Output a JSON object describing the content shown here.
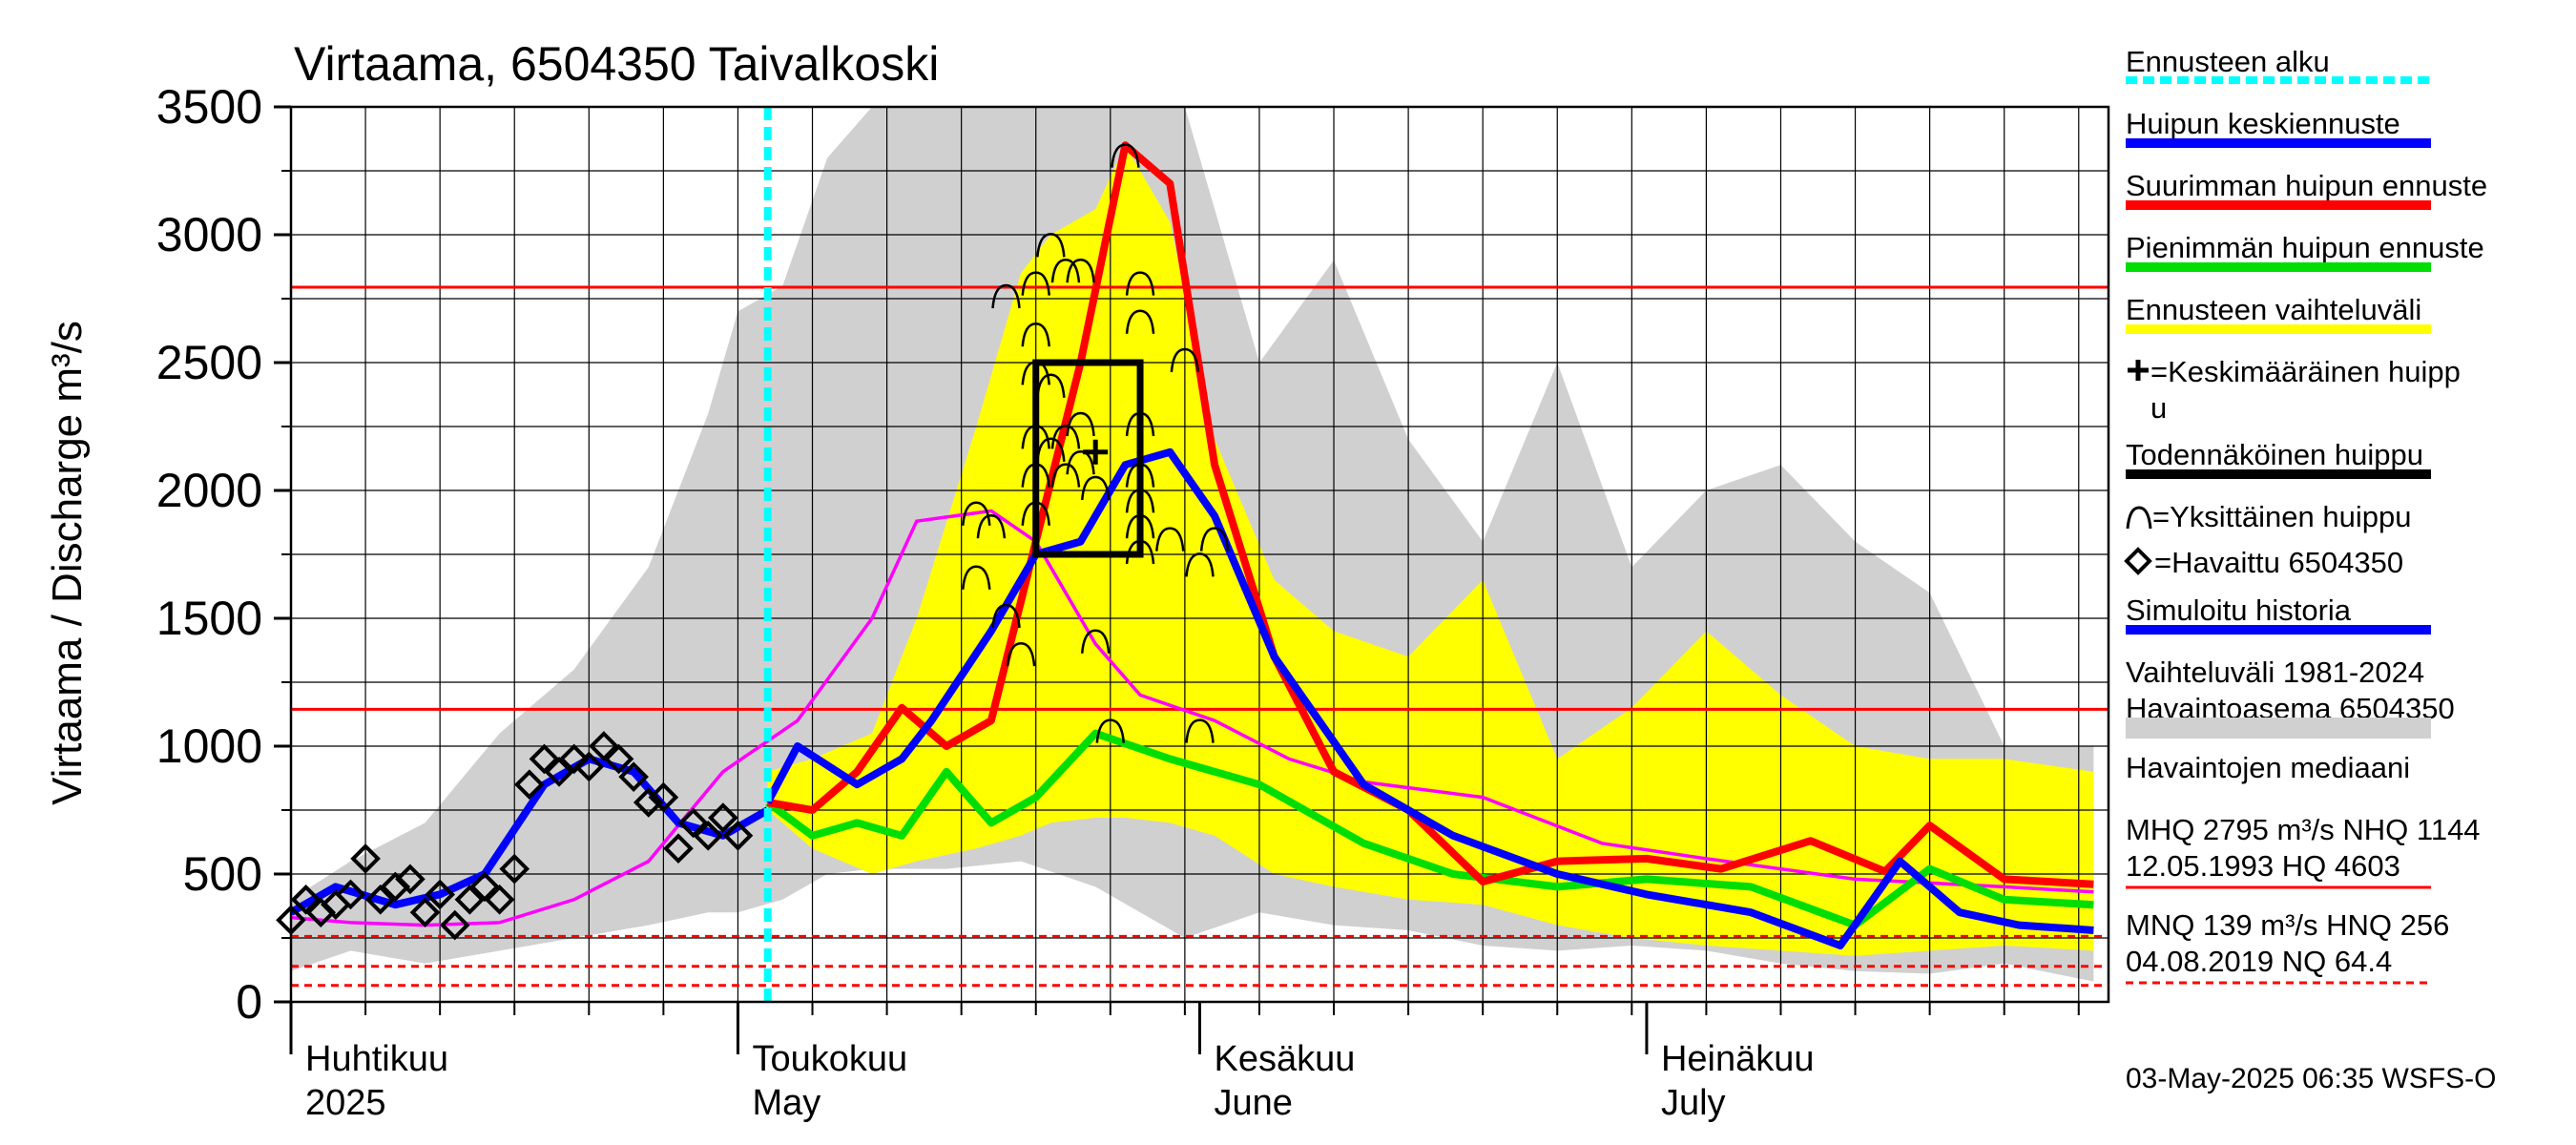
{
  "chart_data": {
    "type": "line",
    "title": "Virtaama, 6504350 Taivalkoski",
    "ylabel": "Virtaama / Discharge   m³/s",
    "ylim": [
      0,
      3500
    ],
    "yticks": [
      0,
      500,
      1000,
      1500,
      2000,
      2500,
      3000,
      3500
    ],
    "xlim": [
      "2025-04-01",
      "2025-07-31"
    ],
    "grid": true,
    "month_labels": [
      {
        "fi": "Huhtikuu",
        "en": "2025",
        "date": "2025-04-01"
      },
      {
        "fi": "Toukokuu",
        "en": "May",
        "date": "2025-05-01"
      },
      {
        "fi": "Kesäkuu",
        "en": "June",
        "date": "2025-06-01"
      },
      {
        "fi": "Heinäkuu",
        "en": "July",
        "date": "2025-07-01"
      }
    ],
    "forecast_start": "2025-05-03",
    "reference_lines": {
      "solid": [
        2795,
        1144
      ],
      "dashed": [
        256,
        139,
        64.4
      ]
    },
    "probable_peak_box": {
      "x0": "2025-05-21",
      "x1": "2025-05-28",
      "y0": 1750,
      "y1": 2500
    },
    "mean_peak": {
      "x": "2025-05-25",
      "y": 2150
    },
    "series": [
      {
        "name": "Vaihteluväli 1981-2024 Havaintoasema 6504350",
        "color": "#d0d0d0",
        "x": [
          "2025-04-01",
          "2025-04-05",
          "2025-04-10",
          "2025-04-15",
          "2025-04-20",
          "2025-04-25",
          "2025-04-29",
          "2025-05-01",
          "2025-05-04",
          "2025-05-07",
          "2025-05-10",
          "2025-05-15",
          "2025-05-20",
          "2025-05-25",
          "2025-05-31",
          "2025-06-05",
          "2025-06-10",
          "2025-06-15",
          "2025-06-20",
          "2025-06-25",
          "2025-06-30",
          "2025-07-05",
          "2025-07-10",
          "2025-07-15",
          "2025-07-20",
          "2025-07-25",
          "2025-07-31"
        ],
        "upper": [
          400,
          550,
          700,
          1050,
          1300,
          1700,
          2300,
          2700,
          2800,
          3300,
          3500,
          3500,
          3500,
          3500,
          3500,
          2500,
          2900,
          2200,
          1800,
          2500,
          1700,
          2000,
          2100,
          1800,
          1600,
          1000,
          1000
        ],
        "lower": [
          120,
          200,
          150,
          200,
          250,
          300,
          350,
          350,
          400,
          500,
          520,
          520,
          550,
          450,
          250,
          350,
          300,
          280,
          220,
          200,
          220,
          200,
          150,
          120,
          110,
          150,
          80
        ]
      },
      {
        "name": "Ennusteen vaihteluväli",
        "color": "#ffff00",
        "x": [
          "2025-05-03",
          "2025-05-06",
          "2025-05-10",
          "2025-05-13",
          "2025-05-17",
          "2025-05-20",
          "2025-05-22",
          "2025-05-25",
          "2025-05-27",
          "2025-05-30",
          "2025-06-02",
          "2025-06-06",
          "2025-06-10",
          "2025-06-15",
          "2025-06-20",
          "2025-06-25",
          "2025-06-30",
          "2025-07-05",
          "2025-07-10",
          "2025-07-15",
          "2025-07-20",
          "2025-07-25",
          "2025-07-31"
        ],
        "upper": [
          900,
          950,
          1050,
          1500,
          2250,
          2850,
          3000,
          3100,
          3350,
          3050,
          2200,
          1650,
          1450,
          1350,
          1650,
          950,
          1150,
          1450,
          1200,
          1000,
          950,
          950,
          900
        ],
        "lower": [
          750,
          600,
          500,
          550,
          600,
          650,
          700,
          720,
          720,
          700,
          650,
          500,
          450,
          400,
          380,
          300,
          250,
          220,
          200,
          180,
          200,
          220,
          200
        ]
      },
      {
        "name": "Havaintojen mediaani",
        "color": "#ff00ff",
        "x": [
          "2025-04-01",
          "2025-04-05",
          "2025-04-10",
          "2025-04-15",
          "2025-04-20",
          "2025-04-25",
          "2025-04-30",
          "2025-05-05",
          "2025-05-10",
          "2025-05-13",
          "2025-05-18",
          "2025-05-21",
          "2025-05-25",
          "2025-05-28",
          "2025-06-02",
          "2025-06-07",
          "2025-06-12",
          "2025-06-20",
          "2025-06-28",
          "2025-07-05",
          "2025-07-15",
          "2025-07-25",
          "2025-07-31"
        ],
        "values": [
          330,
          310,
          300,
          310,
          400,
          550,
          900,
          1100,
          1500,
          1880,
          1920,
          1800,
          1400,
          1200,
          1100,
          950,
          860,
          800,
          620,
          560,
          480,
          450,
          430
        ]
      },
      {
        "name": "Simuloitu historia",
        "color": "#0000ff",
        "x": [
          "2025-04-01",
          "2025-04-04",
          "2025-04-08",
          "2025-04-11",
          "2025-04-14",
          "2025-04-18",
          "2025-04-21",
          "2025-04-24",
          "2025-04-27",
          "2025-04-30",
          "2025-05-03"
        ],
        "values": [
          350,
          450,
          380,
          420,
          500,
          850,
          950,
          900,
          700,
          650,
          750
        ]
      },
      {
        "name": "Huipun keskiennuste",
        "color": "#0000ff",
        "x": [
          "2025-05-03",
          "2025-05-05",
          "2025-05-09",
          "2025-05-12",
          "2025-05-14",
          "2025-05-18",
          "2025-05-21",
          "2025-05-24",
          "2025-05-27",
          "2025-05-30",
          "2025-06-02",
          "2025-06-06",
          "2025-06-12",
          "2025-06-18",
          "2025-06-25",
          "2025-07-01",
          "2025-07-08",
          "2025-07-14",
          "2025-07-18",
          "2025-07-22",
          "2025-07-26",
          "2025-07-31"
        ],
        "values": [
          780,
          1000,
          850,
          950,
          1100,
          1450,
          1750,
          1800,
          2100,
          2150,
          1900,
          1350,
          850,
          650,
          500,
          420,
          350,
          220,
          550,
          350,
          300,
          280
        ]
      },
      {
        "name": "Suurimman huipun ennuste",
        "color": "#ff0000",
        "x": [
          "2025-05-03",
          "2025-05-06",
          "2025-05-09",
          "2025-05-12",
          "2025-05-15",
          "2025-05-18",
          "2025-05-21",
          "2025-05-24",
          "2025-05-27",
          "2025-05-30",
          "2025-06-02",
          "2025-06-06",
          "2025-06-10",
          "2025-06-15",
          "2025-06-20",
          "2025-06-25",
          "2025-07-01",
          "2025-07-06",
          "2025-07-12",
          "2025-07-17",
          "2025-07-20",
          "2025-07-25",
          "2025-07-31"
        ],
        "values": [
          780,
          750,
          900,
          1150,
          1000,
          1100,
          1800,
          2500,
          3350,
          3200,
          2100,
          1350,
          900,
          750,
          470,
          550,
          560,
          520,
          630,
          510,
          690,
          480,
          460
        ]
      },
      {
        "name": "Pienimmän huipun ennuste",
        "color": "#00dd00",
        "x": [
          "2025-05-03",
          "2025-05-06",
          "2025-05-09",
          "2025-05-12",
          "2025-05-15",
          "2025-05-18",
          "2025-05-21",
          "2025-05-25",
          "2025-05-30",
          "2025-06-05",
          "2025-06-12",
          "2025-06-18",
          "2025-06-25",
          "2025-07-01",
          "2025-07-08",
          "2025-07-15",
          "2025-07-20",
          "2025-07-25",
          "2025-07-31"
        ],
        "values": [
          780,
          650,
          700,
          650,
          900,
          700,
          800,
          1050,
          950,
          850,
          620,
          500,
          450,
          480,
          450,
          300,
          520,
          400,
          380
        ]
      },
      {
        "name": "Havaittu 6504350",
        "marker": "diamond",
        "x": [
          "2025-04-01",
          "2025-04-02",
          "2025-04-03",
          "2025-04-04",
          "2025-04-05",
          "2025-04-06",
          "2025-04-07",
          "2025-04-08",
          "2025-04-09",
          "2025-04-10",
          "2025-04-11",
          "2025-04-12",
          "2025-04-13",
          "2025-04-14",
          "2025-04-15",
          "2025-04-16",
          "2025-04-17",
          "2025-04-18",
          "2025-04-19",
          "2025-04-20",
          "2025-04-21",
          "2025-04-22",
          "2025-04-23",
          "2025-04-24",
          "2025-04-25",
          "2025-04-26",
          "2025-04-27",
          "2025-04-28",
          "2025-04-29",
          "2025-04-30",
          "2025-05-01"
        ],
        "values": [
          320,
          400,
          350,
          380,
          420,
          560,
          400,
          450,
          480,
          350,
          420,
          300,
          400,
          450,
          400,
          520,
          850,
          950,
          900,
          950,
          920,
          1000,
          950,
          880,
          780,
          800,
          600,
          700,
          650,
          720,
          650
        ]
      }
    ],
    "individual_peaks": {
      "marker": "arc",
      "points": [
        [
          "2025-05-17",
          1900
        ],
        [
          "2025-05-17",
          1650
        ],
        [
          "2025-05-18",
          1850
        ],
        [
          "2025-05-19",
          1500
        ],
        [
          "2025-05-20",
          1350
        ],
        [
          "2025-05-19",
          2750
        ],
        [
          "2025-05-21",
          2800
        ],
        [
          "2025-05-22",
          2950
        ],
        [
          "2025-05-23",
          2850
        ],
        [
          "2025-05-24",
          2850
        ],
        [
          "2025-05-21",
          2600
        ],
        [
          "2025-05-21",
          2450
        ],
        [
          "2025-05-21",
          2200
        ],
        [
          "2025-05-21",
          2050
        ],
        [
          "2025-05-21",
          1900
        ],
        [
          "2025-05-22",
          2400
        ],
        [
          "2025-05-22",
          2150
        ],
        [
          "2025-05-23",
          2200
        ],
        [
          "2025-05-23",
          2050
        ],
        [
          "2025-05-24",
          2250
        ],
        [
          "2025-05-24",
          2100
        ],
        [
          "2025-05-25",
          2000
        ],
        [
          "2025-05-25",
          1400
        ],
        [
          "2025-05-26",
          1050
        ],
        [
          "2025-05-27",
          3300
        ],
        [
          "2025-05-28",
          2800
        ],
        [
          "2025-05-28",
          2650
        ],
        [
          "2025-05-28",
          2250
        ],
        [
          "2025-05-28",
          2050
        ],
        [
          "2025-05-28",
          1950
        ],
        [
          "2025-05-28",
          1850
        ],
        [
          "2025-05-28",
          1750
        ],
        [
          "2025-05-30",
          1800
        ],
        [
          "2025-05-31",
          2500
        ],
        [
          "2025-06-01",
          1700
        ],
        [
          "2025-06-02",
          1800
        ],
        [
          "2025-06-01",
          1050
        ]
      ]
    }
  },
  "legend": [
    {
      "label": "Ennusteen alku",
      "color": "#00ffff",
      "style": "dotted"
    },
    {
      "label": "Huipun keskiennuste",
      "color": "#0000ff",
      "style": "line"
    },
    {
      "label": "Suurimman huipun ennuste",
      "color": "#ff0000",
      "style": "line"
    },
    {
      "label": "Pienimmän huipun ennuste",
      "color": "#00dd00",
      "style": "line"
    },
    {
      "label": "Ennusteen vaihteluväli",
      "color": "#ffff00",
      "style": "line"
    },
    {
      "label": "=Keskimääräinen huipp",
      "label2": "u",
      "color": "#000000",
      "style": "plus"
    },
    {
      "label": "Todennäköinen huippu",
      "color": "#000000",
      "style": "line"
    },
    {
      "label": "=Yksittäinen huippu",
      "color": "#000000",
      "style": "arc"
    },
    {
      "label": "=Havaittu 6504350",
      "color": "#000000",
      "style": "diamond"
    },
    {
      "label": "Simuloitu historia",
      "color": "#0000ff",
      "style": "line"
    },
    {
      "label": "Vaihteluväli 1981-2024",
      "label2": " Havaintoasema 6504350",
      "color": "#d0d0d0",
      "style": "line"
    },
    {
      "label": "Havaintojen mediaani",
      "color": "#ff00ff",
      "style": "line"
    },
    {
      "label": "MHQ 2795 m³/s NHQ 1144",
      "label2": "12.05.1993 HQ 4603",
      "color": "#ff0000",
      "style": "thin"
    },
    {
      "label": "MNQ  139 m³/s HNQ  256",
      "label2": "04.08.2019 NQ 64.4",
      "color": "#ff0000",
      "style": "dashed"
    }
  ],
  "timestamp": "03-May-2025 06:35 WSFS-O"
}
